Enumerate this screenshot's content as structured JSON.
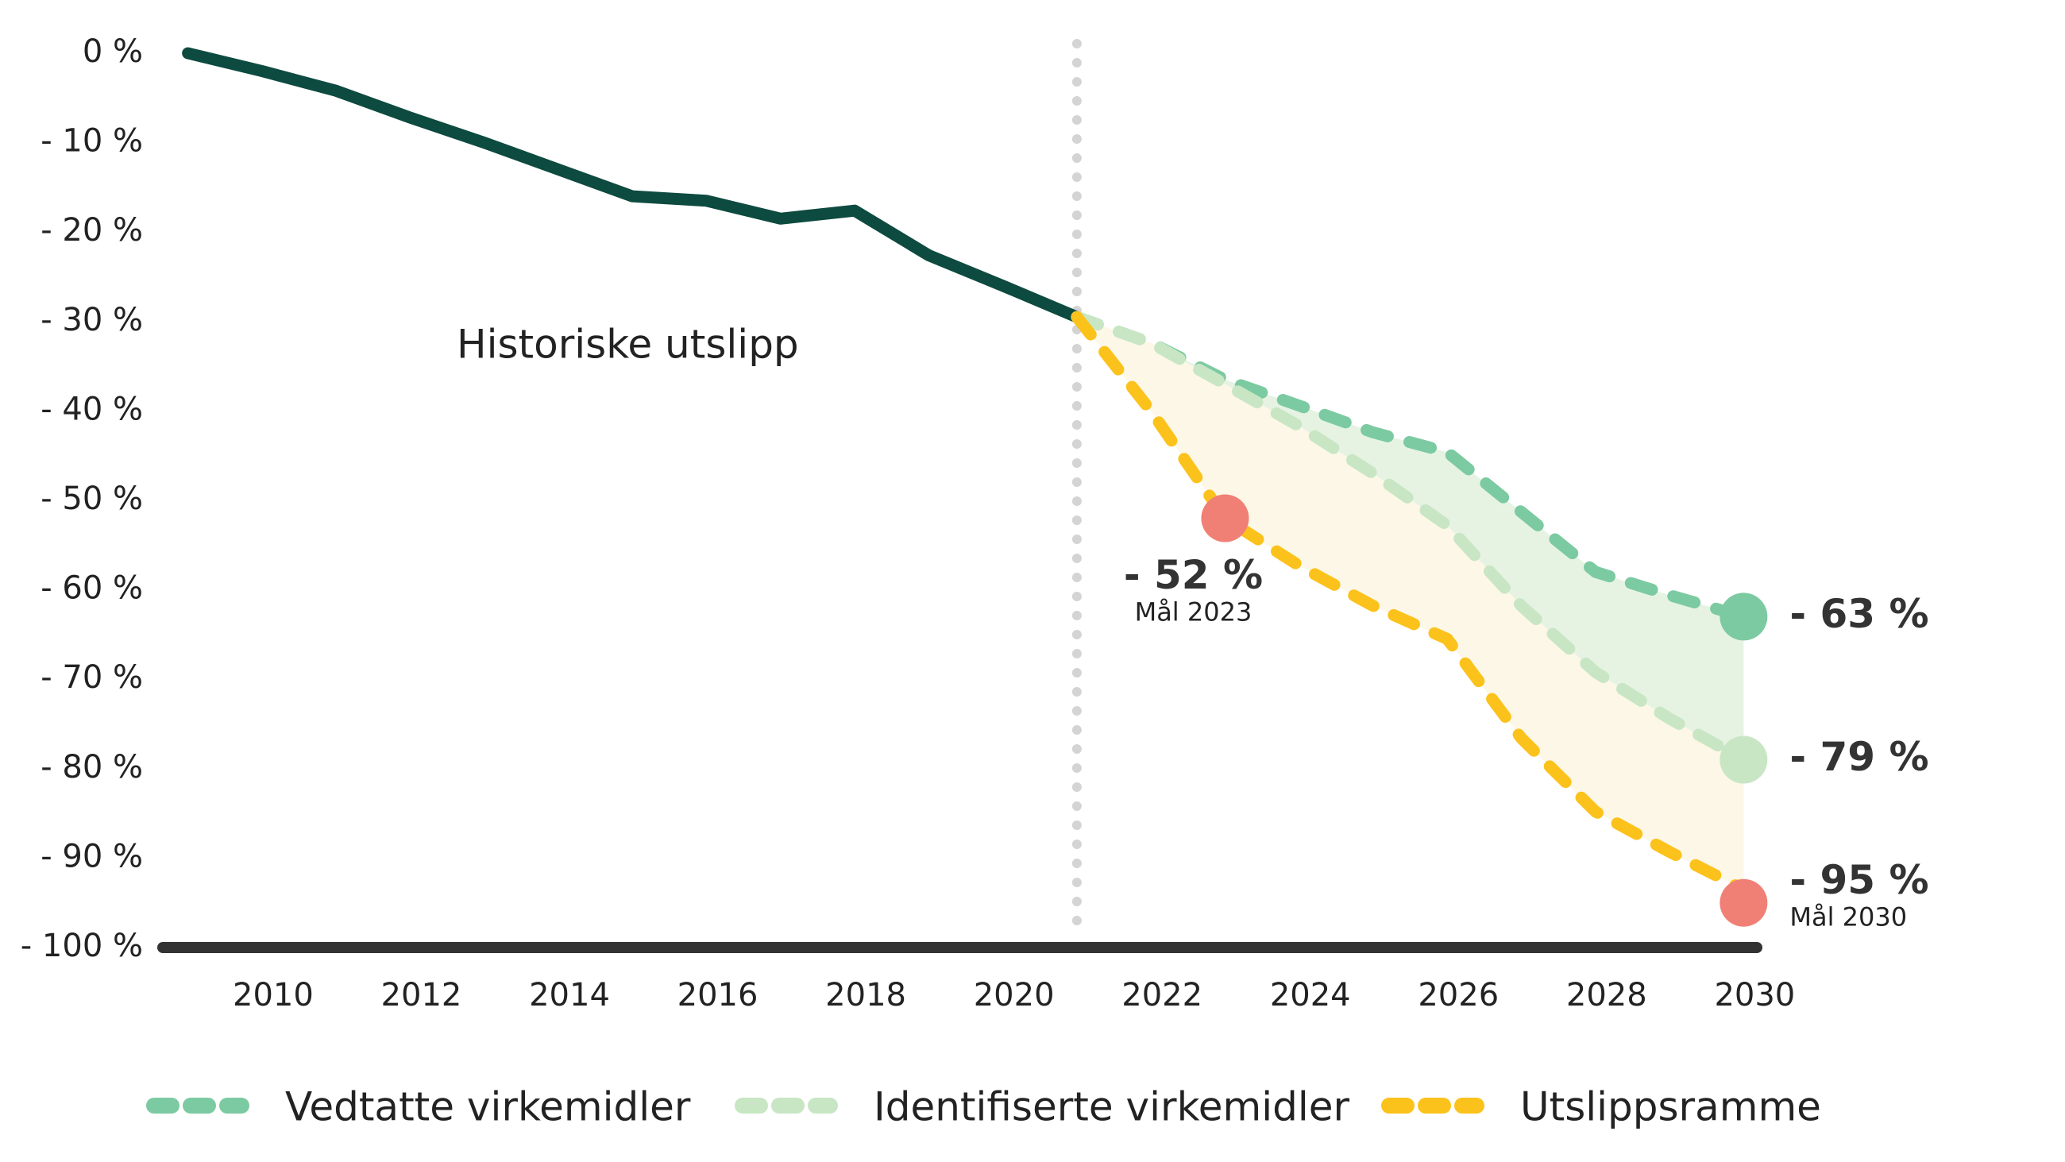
{
  "chart_data": {
    "type": "line",
    "x": [
      2009,
      2010,
      2011,
      2012,
      2013,
      2014,
      2015,
      2016,
      2017,
      2018,
      2019,
      2020,
      2021,
      2022,
      2023,
      2024,
      2025,
      2026,
      2027,
      2028,
      2029,
      2030
    ],
    "series": [
      {
        "name": "Historiske utslipp",
        "color": "#0d4a3f",
        "dashed": false,
        "values": [
          0,
          -2,
          -4.2,
          -7.2,
          -10,
          -13,
          -16,
          -16.5,
          -18.5,
          -17.6,
          -22.6,
          -26,
          -29.5,
          null,
          null,
          null,
          null,
          null,
          null,
          null,
          null,
          null
        ]
      },
      {
        "name": "Vedtatte virkemidler",
        "color": "#7ccaa1",
        "dashed": true,
        "values": [
          null,
          null,
          null,
          null,
          null,
          null,
          null,
          null,
          null,
          null,
          null,
          null,
          -29.5,
          -32.4,
          -36.5,
          -39.4,
          -42.4,
          -44.6,
          -51.3,
          -58,
          -60.6,
          -63
        ]
      },
      {
        "name": "Identifiserte virkemidler",
        "color": "#c8e6c4",
        "dashed": true,
        "values": [
          null,
          null,
          null,
          null,
          null,
          null,
          null,
          null,
          null,
          null,
          null,
          null,
          -29.5,
          -32.4,
          -37,
          -41.7,
          -47,
          -52.8,
          -61.8,
          -69.2,
          -74.4,
          -79
        ]
      },
      {
        "name": "Utslippsramme",
        "color": "#fcc21c",
        "dashed": true,
        "values": [
          null,
          null,
          null,
          null,
          null,
          null,
          null,
          null,
          null,
          null,
          null,
          null,
          -29.5,
          -40,
          -52,
          -57.3,
          -61.8,
          -65.5,
          -76.6,
          -84.8,
          -89.3,
          -93.5
        ]
      }
    ],
    "band_colors": [
      "#e6f3e3",
      "#fdf7e7"
    ],
    "markers": [
      {
        "x": 2023,
        "value": -52,
        "label": "- 52 %",
        "note": "Mål 2023",
        "color": "#f08075"
      },
      {
        "x": 2030,
        "value": -63,
        "label": "- 63 %",
        "color": "#7ccaa1"
      },
      {
        "x": 2030,
        "value": -79,
        "label": "- 79 %",
        "color": "#c8e6c4"
      },
      {
        "x": 2030,
        "value": -95,
        "label": "- 95 %",
        "note": "Mål 2030",
        "color": "#f08075"
      }
    ],
    "vline_x": 2021,
    "xlim": [
      2008.5,
      2030.2
    ],
    "xticks": [
      2010,
      2012,
      2014,
      2016,
      2018,
      2020,
      2022,
      2024,
      2026,
      2028,
      2030
    ],
    "ylim": [
      -100,
      0
    ],
    "yticks": [
      {
        "value": 0,
        "label": "0 %"
      },
      {
        "value": -10,
        "label": "- 10 %"
      },
      {
        "value": -20,
        "label": "- 20 %"
      },
      {
        "value": -30,
        "label": "- 30 %"
      },
      {
        "value": -40,
        "label": "- 40 %"
      },
      {
        "value": -50,
        "label": "- 50 %"
      },
      {
        "value": -60,
        "label": "- 60 %"
      },
      {
        "value": -70,
        "label": "- 70 %"
      },
      {
        "value": -80,
        "label": "- 80 %"
      },
      {
        "value": -90,
        "label": "- 90 %"
      },
      {
        "value": -100,
        "label": "- 100 %"
      }
    ]
  }
}
